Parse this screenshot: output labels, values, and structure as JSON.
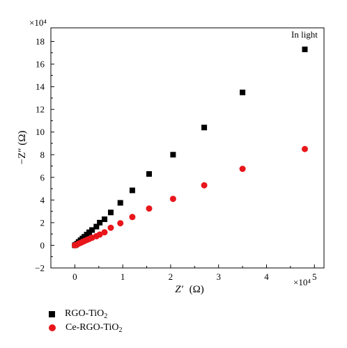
{
  "chart_data": {
    "type": "scatter",
    "annotation": "In light",
    "x_multiplier_label": "×10⁴",
    "y_multiplier_label": "×10⁴",
    "xlabel_main": "Z′",
    "xlabel_unit": "(Ω)",
    "ylabel": "−Z″ (Ω)",
    "xlim": [
      -0.5,
      5.2
    ],
    "ylim": [
      -2,
      19.2
    ],
    "x_ticks": [
      0,
      1,
      2,
      3,
      4,
      5
    ],
    "y_ticks": [
      -2,
      0,
      2,
      4,
      6,
      8,
      10,
      12,
      14,
      16,
      18
    ],
    "series": [
      {
        "name_main": "RGO-TiO",
        "name_sub": "2",
        "color": "#000000",
        "marker": "square",
        "x": [
          0.0,
          0.02,
          0.05,
          0.08,
          0.12,
          0.16,
          0.2,
          0.25,
          0.3,
          0.36,
          0.45,
          0.52,
          0.62,
          0.75,
          0.95,
          1.2,
          1.55,
          2.05,
          2.7,
          3.5,
          4.8
        ],
        "y": [
          0.0,
          0.05,
          0.15,
          0.3,
          0.45,
          0.6,
          0.75,
          0.95,
          1.15,
          1.35,
          1.65,
          2.0,
          2.3,
          2.9,
          3.75,
          4.85,
          6.3,
          8.0,
          10.4,
          13.5,
          17.3
        ]
      },
      {
        "name_main": "Ce-RGO-TiO",
        "name_sub": "2",
        "color": "#e8161b",
        "marker": "circle",
        "x": [
          0.0,
          0.02,
          0.05,
          0.08,
          0.12,
          0.16,
          0.2,
          0.25,
          0.3,
          0.36,
          0.45,
          0.52,
          0.62,
          0.75,
          0.95,
          1.2,
          1.55,
          2.05,
          2.7,
          3.5,
          4.8
        ],
        "y": [
          0.0,
          0.03,
          0.08,
          0.15,
          0.22,
          0.3,
          0.38,
          0.47,
          0.56,
          0.67,
          0.8,
          0.95,
          1.15,
          1.55,
          1.95,
          2.5,
          3.25,
          4.1,
          5.3,
          6.75,
          8.5
        ]
      }
    ]
  }
}
